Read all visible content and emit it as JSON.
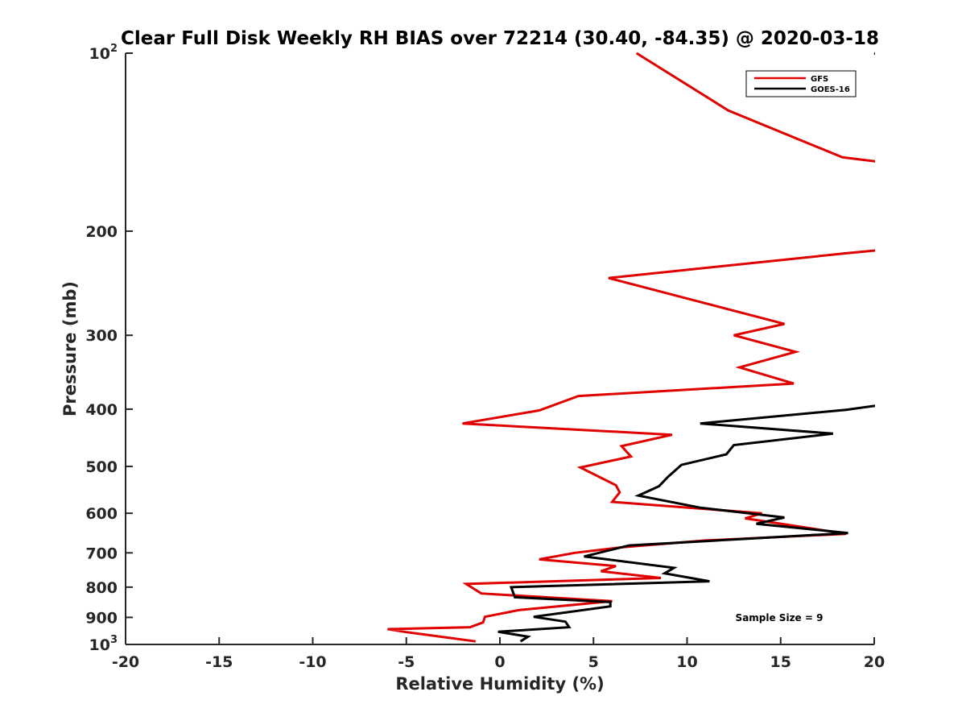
{
  "chart_data": {
    "type": "line",
    "title": "Clear Full Disk Weekly RH BIAS over 72214 (30.40, -84.35) @ 2020-03-18",
    "xlabel": "Relative Humidity (%)",
    "ylabel": "Pressure (mb)",
    "xlim": [
      -20,
      20
    ],
    "ylim": [
      100,
      1000
    ],
    "yscale": "log",
    "ydirection": "reversed",
    "x_ticks": [
      "-20",
      "-15",
      "-10",
      "-5",
      "0",
      "5",
      "10",
      "15",
      "20"
    ],
    "y_ticks": [
      {
        "value": 100,
        "base": "10",
        "exp": "2"
      },
      {
        "value": 200,
        "label": "200"
      },
      {
        "value": 300,
        "label": "300"
      },
      {
        "value": 400,
        "label": "400"
      },
      {
        "value": 500,
        "label": "500"
      },
      {
        "value": 600,
        "label": "600"
      },
      {
        "value": 700,
        "label": "700"
      },
      {
        "value": 800,
        "label": "800"
      },
      {
        "value": 900,
        "label": "900"
      },
      {
        "value": 1000,
        "base": "10",
        "exp": "3"
      }
    ],
    "legend": {
      "position": "top-right"
    },
    "annotation": "Sample Size = 9",
    "series": [
      {
        "name": "GFS",
        "color": "#e00000",
        "points": [
          [
            7.3,
            100
          ],
          [
            12.2,
            125
          ],
          [
            18.3,
            150
          ],
          [
            20.5,
            153
          ],
          [
            20.5,
            215
          ],
          [
            18.5,
            218
          ],
          [
            5.8,
            240
          ],
          [
            10.0,
            260
          ],
          [
            15.2,
            287
          ],
          [
            12.5,
            300
          ],
          [
            15.8,
            320
          ],
          [
            12.8,
            340
          ],
          [
            15.7,
            362
          ],
          [
            4.2,
            380
          ],
          [
            2.1,
            402
          ],
          [
            -2.0,
            423
          ],
          [
            9.2,
            442
          ],
          [
            6.5,
            462
          ],
          [
            7.0,
            481
          ],
          [
            4.3,
            502
          ],
          [
            6.2,
            538
          ],
          [
            6.4,
            553
          ],
          [
            6.0,
            574
          ],
          [
            14.0,
            600
          ],
          [
            13.1,
            612
          ],
          [
            14.3,
            620
          ],
          [
            18.5,
            650
          ],
          [
            11.0,
            667
          ],
          [
            6.5,
            685
          ],
          [
            4.0,
            700
          ],
          [
            2.1,
            718
          ],
          [
            6.2,
            737
          ],
          [
            5.4,
            752
          ],
          [
            8.6,
            772
          ],
          [
            -1.8,
            790
          ],
          [
            -1.0,
            820
          ],
          [
            6.0,
            845
          ],
          [
            1.0,
            875
          ],
          [
            -0.8,
            898
          ],
          [
            -0.9,
            918
          ],
          [
            -1.6,
            935
          ],
          [
            -6.0,
            942
          ],
          [
            -5.0,
            953
          ],
          [
            -3.0,
            972
          ],
          [
            -1.3,
            988
          ]
        ]
      },
      {
        "name": "GOES-16",
        "color": "#000000",
        "points": [
          [
            20.0,
            100
          ],
          [
            20.5,
            101.5
          ],
          [
            20.5,
            393
          ],
          [
            18.5,
            401
          ],
          [
            10.7,
            423
          ],
          [
            17.8,
            440
          ],
          [
            12.5,
            460
          ],
          [
            12.1,
            477
          ],
          [
            9.7,
            497
          ],
          [
            9.0,
            520
          ],
          [
            8.5,
            540
          ],
          [
            7.4,
            560
          ],
          [
            10.7,
            587
          ],
          [
            15.2,
            610
          ],
          [
            13.7,
            625
          ],
          [
            18.6,
            648
          ],
          [
            6.9,
            680
          ],
          [
            4.5,
            710
          ],
          [
            9.3,
            742
          ],
          [
            8.8,
            758
          ],
          [
            11.2,
            782
          ],
          [
            0.6,
            800
          ],
          [
            0.8,
            832
          ],
          [
            5.9,
            848
          ],
          [
            5.9,
            862
          ],
          [
            1.8,
            898
          ],
          [
            3.5,
            915
          ],
          [
            3.7,
            935
          ],
          [
            -0.1,
            952
          ],
          [
            1.5,
            970
          ],
          [
            1.1,
            988
          ]
        ]
      }
    ]
  }
}
